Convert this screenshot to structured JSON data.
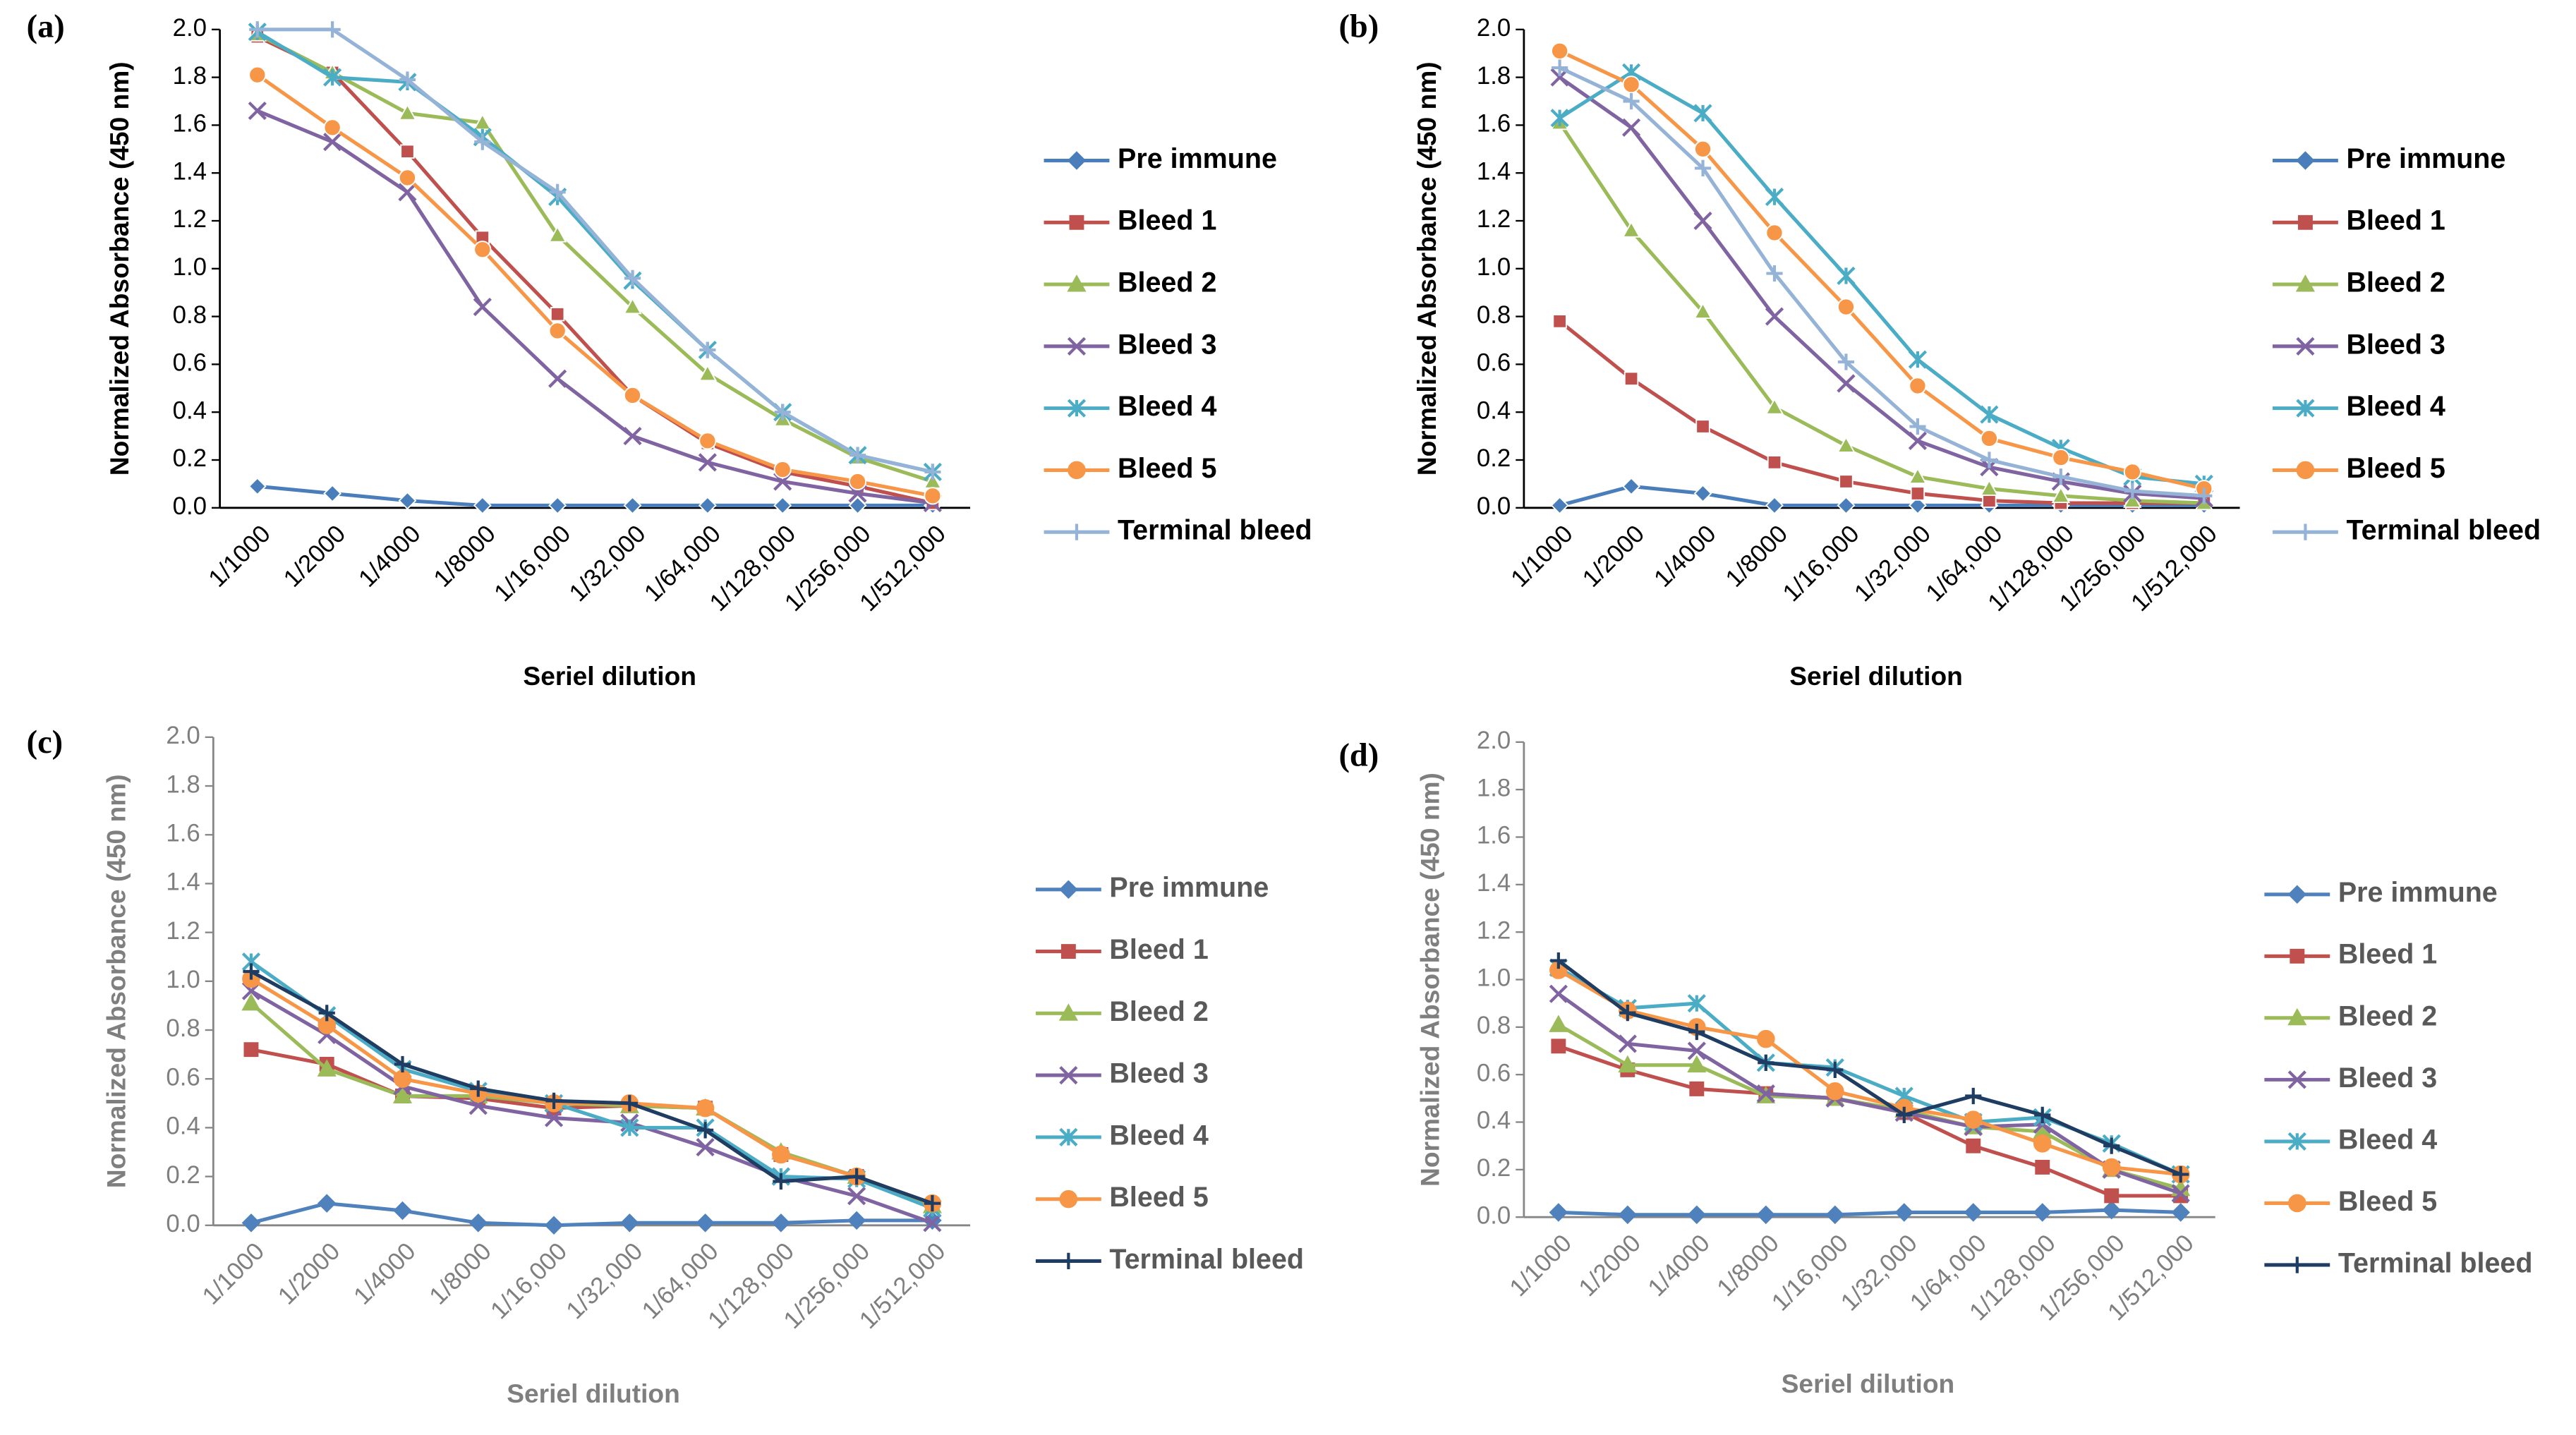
{
  "chart_data": [
    {
      "type": "line",
      "panel": "(a)",
      "y_label": "Normalized Absorbance (450 nm)",
      "x_label": "Seriel dilution",
      "categories": [
        "1/1000",
        "1/2000",
        "1/4000",
        "1/8000",
        "1/16,000",
        "1/32,000",
        "1/64,000",
        "1/128,000",
        "1/256,000",
        "1/512,000"
      ],
      "ylim": [
        0,
        2
      ],
      "yticks": [
        {
          "value": 0,
          "label": "0.0"
        },
        {
          "value": 0.2,
          "label": "0.2"
        },
        {
          "value": 0.4,
          "label": "0.4"
        },
        {
          "value": 0.6,
          "label": "0.6"
        },
        {
          "value": 0.8,
          "label": "0.8"
        },
        {
          "value": 1,
          "label": "1.0"
        },
        {
          "value": 1.2,
          "label": "1.2"
        },
        {
          "value": 1.4,
          "label": "1.4"
        },
        {
          "value": 1.6,
          "label": "1.6"
        },
        {
          "value": 1.8,
          "label": "1.8"
        },
        {
          "value": 2,
          "label": "2.0"
        }
      ],
      "legend": "right",
      "series": [
        {
          "name": "Pre immune",
          "color": "#4a7ebb",
          "marker": "diamond",
          "values": [
            0.09,
            0.06,
            0.03,
            0.01,
            0.01,
            0.01,
            0.01,
            0.01,
            0.01,
            0.01
          ]
        },
        {
          "name": "Bleed 1",
          "color": "#c0504d",
          "marker": "square",
          "values": [
            1.97,
            1.82,
            1.49,
            1.13,
            0.81,
            0.47,
            0.27,
            0.15,
            0.09,
            0.02
          ]
        },
        {
          "name": "Bleed 2",
          "color": "#9bbb59",
          "marker": "triangle",
          "values": [
            1.98,
            1.82,
            1.65,
            1.61,
            1.14,
            0.84,
            0.56,
            0.37,
            0.21,
            0.11
          ]
        },
        {
          "name": "Bleed 3",
          "color": "#8064a2",
          "marker": "x",
          "values": [
            1.66,
            1.53,
            1.32,
            0.84,
            0.54,
            0.3,
            0.19,
            0.11,
            0.06,
            0.02
          ]
        },
        {
          "name": "Bleed 4",
          "color": "#4bacc6",
          "marker": "star",
          "values": [
            1.99,
            1.8,
            1.78,
            1.55,
            1.3,
            0.95,
            0.66,
            0.4,
            0.22,
            0.15
          ]
        },
        {
          "name": "Bleed 5",
          "color": "#f79646",
          "marker": "circle",
          "values": [
            1.81,
            1.59,
            1.38,
            1.08,
            0.74,
            0.47,
            0.28,
            0.16,
            0.11,
            0.05
          ]
        },
        {
          "name": "Terminal bleed",
          "color": "#95b3d7",
          "marker": "plus",
          "values": [
            2.0,
            2.0,
            1.79,
            1.53,
            1.32,
            0.96,
            0.66,
            0.4,
            0.22,
            0.15
          ]
        }
      ]
    },
    {
      "type": "line",
      "panel": "(b)",
      "y_label": "Normalized Absorbance (450 nm)",
      "x_label": "Seriel dilution",
      "categories": [
        "1/1000",
        "1/2000",
        "1/4000",
        "1/8000",
        "1/16,000",
        "1/32,000",
        "1/64,000",
        "1/128,000",
        "1/256,000",
        "1/512,000"
      ],
      "ylim": [
        0,
        2
      ],
      "yticks": [
        {
          "value": 0,
          "label": "0.0"
        },
        {
          "value": 0.2,
          "label": "0.2"
        },
        {
          "value": 0.4,
          "label": "0.4"
        },
        {
          "value": 0.6,
          "label": "0.6"
        },
        {
          "value": 0.8,
          "label": "0.8"
        },
        {
          "value": 1,
          "label": "1.0"
        },
        {
          "value": 1.2,
          "label": "1.2"
        },
        {
          "value": 1.4,
          "label": "1.4"
        },
        {
          "value": 1.6,
          "label": "1.6"
        },
        {
          "value": 1.8,
          "label": "1.8"
        },
        {
          "value": 2,
          "label": "2.0"
        }
      ],
      "legend": "right",
      "series": [
        {
          "name": "Pre immune",
          "color": "#4a7ebb",
          "marker": "diamond",
          "values": [
            0.01,
            0.09,
            0.06,
            0.01,
            0.01,
            0.01,
            0.01,
            0.01,
            0.01,
            0.01
          ]
        },
        {
          "name": "Bleed 1",
          "color": "#c0504d",
          "marker": "square",
          "values": [
            0.78,
            0.54,
            0.34,
            0.19,
            0.11,
            0.06,
            0.03,
            0.02,
            0.02,
            0.02
          ]
        },
        {
          "name": "Bleed 2",
          "color": "#9bbb59",
          "marker": "triangle",
          "values": [
            1.61,
            1.16,
            0.82,
            0.42,
            0.26,
            0.13,
            0.08,
            0.05,
            0.03,
            0.02
          ]
        },
        {
          "name": "Bleed 3",
          "color": "#8064a2",
          "marker": "x",
          "values": [
            1.8,
            1.59,
            1.2,
            0.8,
            0.52,
            0.28,
            0.17,
            0.11,
            0.06,
            0.04
          ]
        },
        {
          "name": "Bleed 4",
          "color": "#4bacc6",
          "marker": "star",
          "values": [
            1.63,
            1.82,
            1.65,
            1.3,
            0.97,
            0.62,
            0.39,
            0.25,
            0.13,
            0.1
          ]
        },
        {
          "name": "Bleed 5",
          "color": "#f79646",
          "marker": "circle",
          "values": [
            1.91,
            1.77,
            1.5,
            1.15,
            0.84,
            0.51,
            0.29,
            0.21,
            0.15,
            0.08
          ]
        },
        {
          "name": "Terminal bleed",
          "color": "#95b3d7",
          "marker": "plus",
          "values": [
            1.84,
            1.7,
            1.42,
            0.98,
            0.61,
            0.34,
            0.2,
            0.13,
            0.07,
            0.05
          ]
        }
      ]
    },
    {
      "type": "line",
      "panel": "(c)",
      "y_label": "Normalized Absorbance (450 nm)",
      "x_label": "Seriel dilution",
      "categories": [
        "1/1000",
        "1/2000",
        "1/4000",
        "1/8000",
        "1/16,000",
        "1/32,000",
        "1/64,000",
        "1/128,000",
        "1/256,000",
        "1/512,000"
      ],
      "ylim": [
        0,
        2
      ],
      "yticks": [
        {
          "value": 0,
          "label": "0.0"
        },
        {
          "value": 0.2,
          "label": "0.2"
        },
        {
          "value": 0.4,
          "label": "0.4"
        },
        {
          "value": 0.6,
          "label": "0.6"
        },
        {
          "value": 0.8,
          "label": "0.8"
        },
        {
          "value": 1,
          "label": "1.0"
        },
        {
          "value": 1.2,
          "label": "1.2"
        },
        {
          "value": 1.4,
          "label": "1.4"
        },
        {
          "value": 1.6,
          "label": "1.6"
        },
        {
          "value": 1.8,
          "label": "1.8"
        },
        {
          "value": 2,
          "label": "2.0"
        }
      ],
      "legend": "right",
      "series": [
        {
          "name": "Pre immune",
          "color": "#4f81bd",
          "marker": "diamond",
          "values": [
            0.01,
            0.09,
            0.06,
            0.01,
            0,
            0.01,
            0.01,
            0.01,
            0.02,
            0.02
          ]
        },
        {
          "name": "Bleed 1",
          "color": "#c0504d",
          "marker": "square",
          "values": [
            0.72,
            0.66,
            0.53,
            0.52,
            0.48,
            0.49,
            0.48,
            0.29,
            0.2,
            0.08
          ]
        },
        {
          "name": "Bleed 2",
          "color": "#9bbb59",
          "marker": "triangle",
          "values": [
            0.91,
            0.64,
            0.53,
            0.53,
            0.5,
            0.49,
            0.48,
            0.3,
            0.2,
            0.08
          ]
        },
        {
          "name": "Bleed 3",
          "color": "#8064a2",
          "marker": "x",
          "values": [
            0.96,
            0.78,
            0.57,
            0.49,
            0.44,
            0.42,
            0.32,
            0.2,
            0.12,
            0.01
          ]
        },
        {
          "name": "Bleed 4",
          "color": "#4bacc6",
          "marker": "star",
          "values": [
            1.08,
            0.86,
            0.64,
            0.55,
            0.5,
            0.4,
            0.4,
            0.2,
            0.19,
            0.07
          ]
        },
        {
          "name": "Bleed 5",
          "color": "#f79646",
          "marker": "circle",
          "values": [
            1.01,
            0.82,
            0.6,
            0.54,
            0.5,
            0.5,
            0.48,
            0.29,
            0.2,
            0.09
          ]
        },
        {
          "name": "Terminal bleed",
          "color": "#1f3d63",
          "marker": "plus",
          "values": [
            1.04,
            0.87,
            0.66,
            0.56,
            0.51,
            0.5,
            0.39,
            0.18,
            0.2,
            0.09
          ]
        }
      ]
    },
    {
      "type": "line",
      "panel": "(d)",
      "y_label": "Normalized Absorbance (450 nm)",
      "x_label": "Seriel dilution",
      "categories": [
        "1/1000",
        "1/2000",
        "1/4000",
        "1/8000",
        "1/16,000",
        "1/32,000",
        "1/64,000",
        "1/128,000",
        "1/256,000",
        "1/512,000"
      ],
      "ylim": [
        0,
        2
      ],
      "yticks": [
        {
          "value": 0,
          "label": "0.0"
        },
        {
          "value": 0.2,
          "label": "0.2"
        },
        {
          "value": 0.4,
          "label": "0.4"
        },
        {
          "value": 0.6,
          "label": "0.6"
        },
        {
          "value": 0.8,
          "label": "0.8"
        },
        {
          "value": 1,
          "label": "1.0"
        },
        {
          "value": 1.2,
          "label": "1.2"
        },
        {
          "value": 1.4,
          "label": "1.4"
        },
        {
          "value": 1.6,
          "label": "1.6"
        },
        {
          "value": 1.8,
          "label": "1.8"
        },
        {
          "value": 2,
          "label": "2.0"
        }
      ],
      "legend": "right",
      "series": [
        {
          "name": "Pre immune",
          "color": "#4f81bd",
          "marker": "diamond",
          "values": [
            0.02,
            0.01,
            0.01,
            0.01,
            0.01,
            0.02,
            0.02,
            0.02,
            0.03,
            0.02
          ]
        },
        {
          "name": "Bleed 1",
          "color": "#c0504d",
          "marker": "square",
          "values": [
            0.72,
            0.62,
            0.54,
            0.52,
            0.5,
            0.44,
            0.3,
            0.21,
            0.09,
            0.09
          ]
        },
        {
          "name": "Bleed 2",
          "color": "#9bbb59",
          "marker": "triangle",
          "values": [
            0.81,
            0.64,
            0.64,
            0.51,
            0.5,
            0.45,
            0.38,
            0.36,
            0.2,
            0.12
          ]
        },
        {
          "name": "Bleed 3",
          "color": "#8064a2",
          "marker": "x",
          "values": [
            0.94,
            0.73,
            0.7,
            0.52,
            0.5,
            0.44,
            0.38,
            0.39,
            0.2,
            0.1
          ]
        },
        {
          "name": "Bleed 4",
          "color": "#4bacc6",
          "marker": "star",
          "values": [
            1.05,
            0.88,
            0.9,
            0.65,
            0.63,
            0.51,
            0.4,
            0.42,
            0.31,
            0.18
          ]
        },
        {
          "name": "Bleed 5",
          "color": "#f79646",
          "marker": "circle",
          "values": [
            1.04,
            0.87,
            0.8,
            0.75,
            0.53,
            0.46,
            0.41,
            0.31,
            0.21,
            0.18
          ]
        },
        {
          "name": "Terminal bleed",
          "color": "#1f3d63",
          "marker": "plus",
          "values": [
            1.08,
            0.86,
            0.78,
            0.65,
            0.62,
            0.43,
            0.51,
            0.43,
            0.3,
            0.18
          ]
        }
      ]
    }
  ]
}
